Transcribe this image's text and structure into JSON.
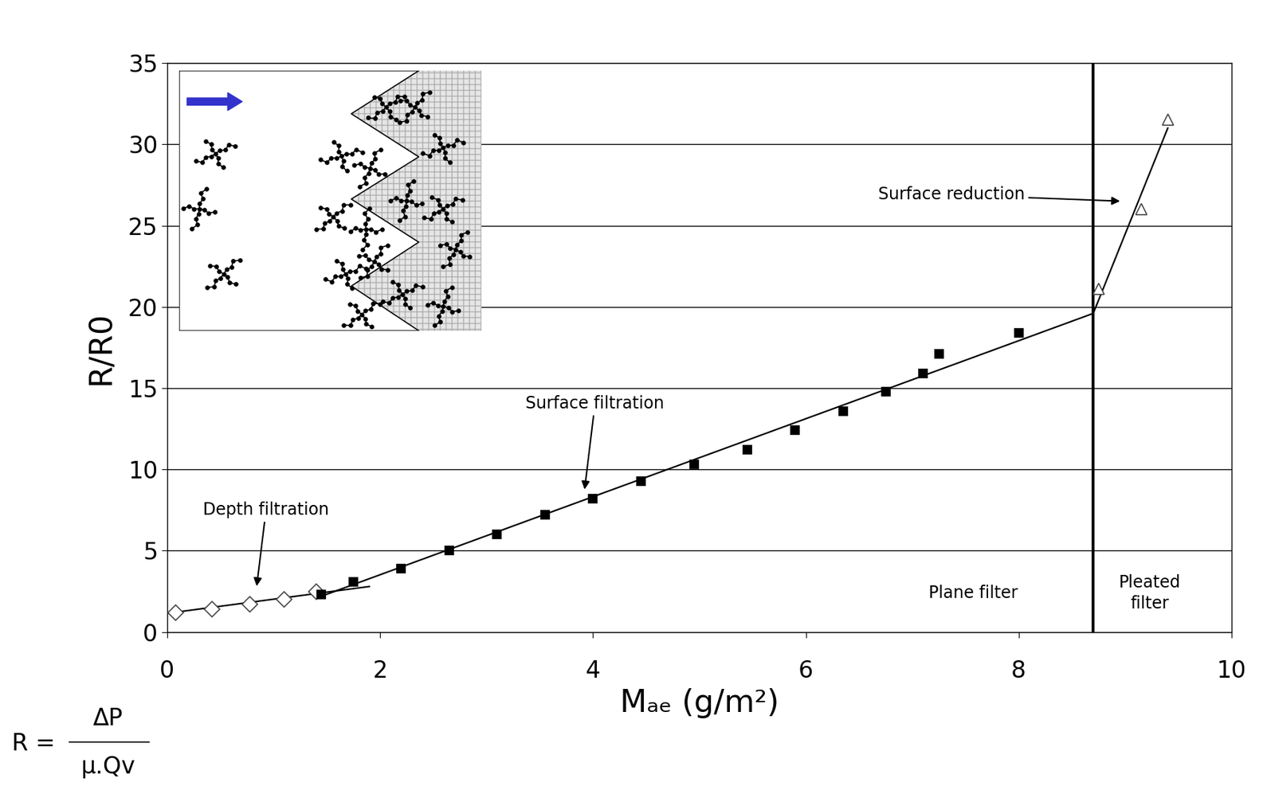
{
  "chart_data": {
    "type": "scatter",
    "x_label": "Mₐₑ (g/m²)",
    "y_label": "R/R0",
    "xlim": [
      0,
      10
    ],
    "xticks": [
      0,
      2,
      4,
      6,
      8,
      10
    ],
    "ylim": [
      0,
      35
    ],
    "yticks": [
      0,
      5,
      10,
      15,
      20,
      25,
      30,
      35
    ],
    "grid": "y",
    "series": [
      {
        "type": "scatter",
        "marker": "diamond",
        "color": "#000000",
        "x": [
          0.08,
          0.42,
          0.78,
          1.1,
          1.4
        ],
        "values": [
          1.2,
          1.4,
          1.7,
          2.0,
          2.5
        ]
      },
      {
        "type": "scatter",
        "marker": "square",
        "color": "#000000",
        "x": [
          1.45,
          1.75,
          2.2,
          2.65,
          3.1,
          3.55,
          4.0,
          4.45,
          4.95,
          5.45,
          5.9,
          6.35,
          6.75,
          7.1,
          7.25,
          8.0
        ],
        "values": [
          2.3,
          3.1,
          3.9,
          5.0,
          6.0,
          7.2,
          8.2,
          9.3,
          10.3,
          11.2,
          12.4,
          13.6,
          14.8,
          15.9,
          17.1,
          18.4
        ]
      },
      {
        "type": "scatter",
        "marker": "triangle",
        "color": "#000000",
        "x": [
          8.75,
          9.15,
          9.4
        ],
        "values": [
          21.1,
          26.0,
          31.5
        ]
      },
      {
        "type": "line",
        "color": "#000000",
        "x": [
          0,
          1.9
        ],
        "values": [
          1.15,
          2.8
        ]
      },
      {
        "type": "line",
        "color": "#000000",
        "x": [
          1.45,
          8.7
        ],
        "values": [
          2.2,
          19.6
        ]
      },
      {
        "type": "line",
        "color": "#000000",
        "x": [
          8.7,
          9.4
        ],
        "values": [
          19.6,
          31.0
        ]
      },
      {
        "type": "line",
        "color": "#000000",
        "x": [
          8.7,
          8.7
        ],
        "values": [
          0,
          35
        ]
      }
    ],
    "annotations": [
      "Depth filtration",
      "Surface filtration",
      "Surface reduction",
      "Plane filter",
      "Pleated\nfilter"
    ],
    "formula": {
      "lhs": "R =",
      "numerator": "ΔP",
      "denominator": "μ.Qv"
    }
  }
}
